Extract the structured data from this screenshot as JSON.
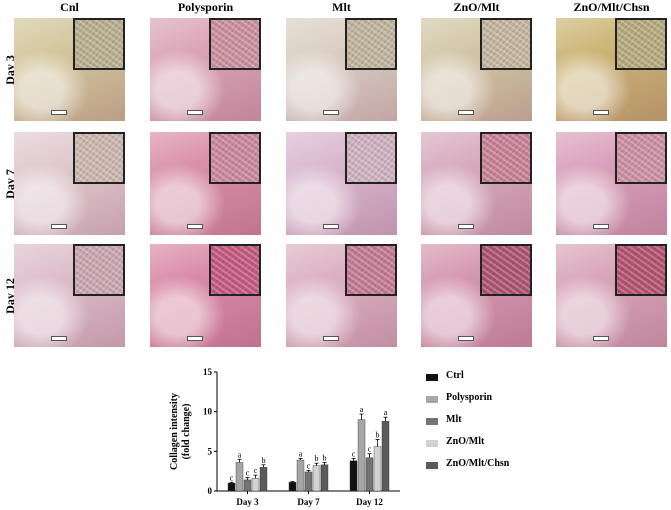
{
  "micrographs": {
    "columns": [
      "Cnl",
      "Polysporin",
      "Mlt",
      "ZnO/Mlt",
      "ZnO/Mlt/Chsn"
    ],
    "rows": [
      "Day 3",
      "Day 7",
      "Day 12"
    ],
    "tile_colors": [
      [
        "#d2c69b",
        "#dba4b6",
        "#dacfc4",
        "#d2c6a6",
        "#cbb474"
      ],
      [
        "#e0c9cf",
        "#d98fa7",
        "#d9b7cf",
        "#d7aabd",
        "#d9a0bb"
      ],
      [
        "#ddbecb",
        "#d98aa6",
        "#dcb0c2",
        "#d497af",
        "#d8a5b9"
      ]
    ],
    "inset_colors": [
      [
        "#b6ad8c",
        "#c78f9c",
        "#bdb39b",
        "#c0b49c",
        "#b2a879"
      ],
      [
        "#c8b6ac",
        "#c7869b",
        "#cdb0be",
        "#c57f94",
        "#c98ea2"
      ],
      [
        "#c7a6b0",
        "#c0577d",
        "#c07891",
        "#a9516e",
        "#b1506f"
      ]
    ]
  },
  "chart_data": {
    "type": "bar",
    "ylabel": "Collagen intensity (fold change)",
    "ylabel_lines": [
      "Collagen intensity",
      "(fold change)"
    ],
    "ylim": [
      0,
      15
    ],
    "yticks": [
      0,
      5,
      10,
      15
    ],
    "categories": [
      "Day 3",
      "Day 7",
      "Day 12"
    ],
    "series": [
      {
        "name": "Ctrl",
        "color": "#111111",
        "values": [
          1.0,
          1.1,
          3.8
        ],
        "errors": [
          0.1,
          0.1,
          0.3
        ],
        "letters": [
          "c",
          "",
          "c"
        ]
      },
      {
        "name": "Polysporin",
        "color": "#a6a6a6",
        "values": [
          3.6,
          3.9,
          9.0
        ],
        "errors": [
          0.4,
          0.2,
          0.7
        ],
        "letters": [
          "a",
          "a",
          "a"
        ]
      },
      {
        "name": "Mlt",
        "color": "#737373",
        "values": [
          1.4,
          2.4,
          4.2
        ],
        "errors": [
          0.3,
          0.2,
          0.5
        ],
        "letters": [
          "c",
          "c",
          "c"
        ]
      },
      {
        "name": "ZnO/Mlt",
        "color": "#d2d2d2",
        "values": [
          1.6,
          3.2,
          5.6
        ],
        "errors": [
          0.4,
          0.3,
          0.9
        ],
        "letters": [
          "c",
          "b",
          "b"
        ]
      },
      {
        "name": "ZnO/Mlt/Chsn",
        "color": "#5a5a5a",
        "values": [
          3.0,
          3.3,
          8.8
        ],
        "errors": [
          0.3,
          0.3,
          0.5
        ],
        "letters": [
          "b",
          "b",
          "a"
        ]
      }
    ],
    "legend_position": "right"
  }
}
